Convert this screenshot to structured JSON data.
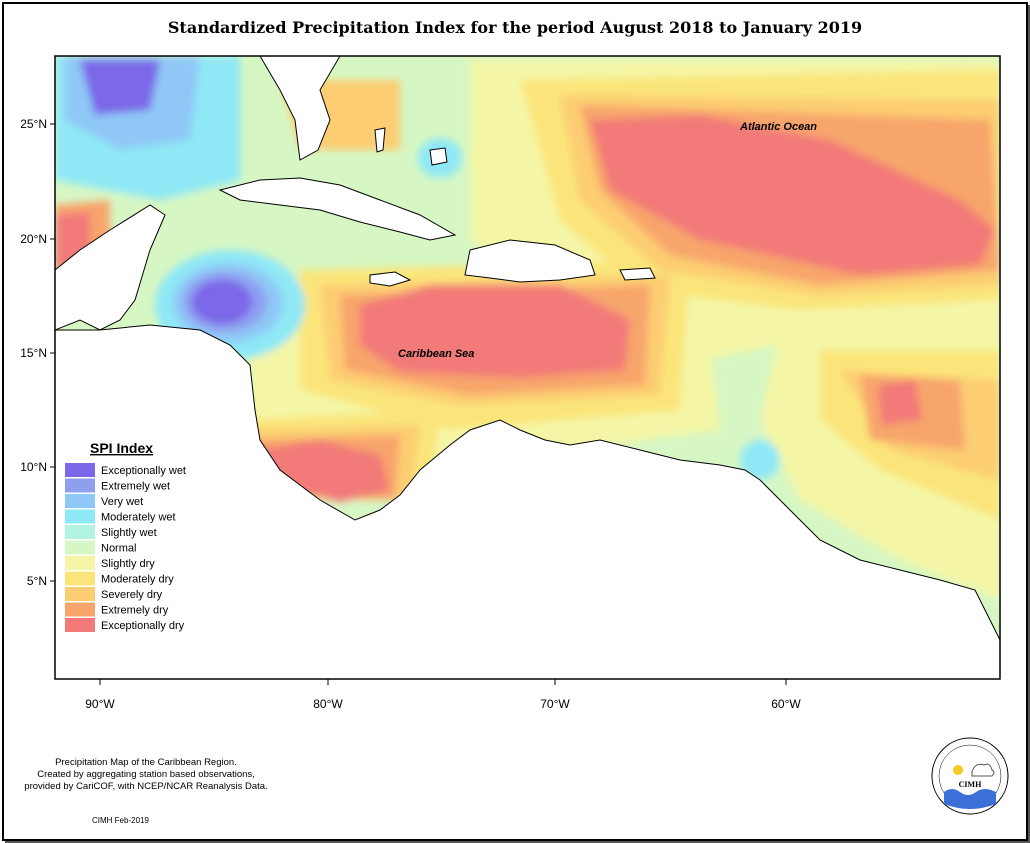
{
  "title": "Standardized Precipitation Index for the period August 2018 to January 2019",
  "map": {
    "lat_ticks": [
      "25°N",
      "20°N",
      "15°N",
      "10°N",
      "5°N"
    ],
    "lon_ticks": [
      "90°W",
      "80°W",
      "70°W",
      "60°W"
    ],
    "labels": {
      "atlantic": "Atlantic Ocean",
      "caribbean": "Caribbean Sea"
    }
  },
  "legend": {
    "title": "SPI Index",
    "items": [
      {
        "label": "Exceptionally wet",
        "color": "#7b68e8"
      },
      {
        "label": "Extremely wet",
        "color": "#8e9ff0"
      },
      {
        "label": "Very wet",
        "color": "#8fc8f6"
      },
      {
        "label": "Moderately wet",
        "color": "#8fe8f6"
      },
      {
        "label": "Slightly wet",
        "color": "#b2f3e0"
      },
      {
        "label": "Normal",
        "color": "#d6f7c4"
      },
      {
        "label": "Slightly dry",
        "color": "#f4f6a6"
      },
      {
        "label": "Moderately dry",
        "color": "#fbe57a"
      },
      {
        "label": "Severely dry",
        "color": "#fccd72"
      },
      {
        "label": "Extremely dry",
        "color": "#f8a56c"
      },
      {
        "label": "Exceptionally dry",
        "color": "#f27a78"
      }
    ]
  },
  "credit": {
    "line1": "Precipitation Map of the Caribbean Region.",
    "line2": "Created by aggregating station based observations,",
    "line3": "provided by CariCOF, with NCEP/NCAR Reanalysis Data.",
    "stamp": "CIMH Feb-2019"
  },
  "logo": {
    "text": "CIMH"
  }
}
